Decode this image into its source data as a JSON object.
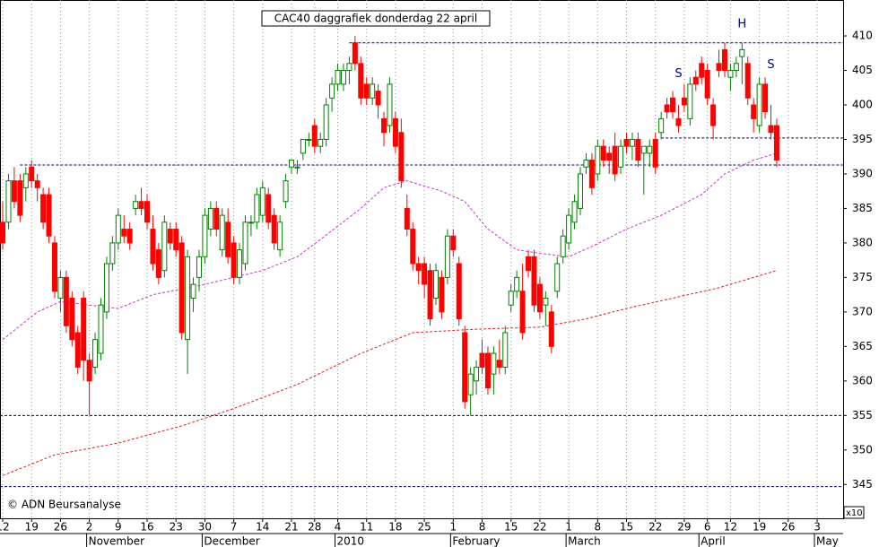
{
  "chart_data": {
    "type": "candlestick",
    "title": "CAC40 daggrafiek donderdag 22 april",
    "footer": "© ADN Beursanalyse",
    "corner_label": "x10",
    "up_color": "#008000",
    "down_color": "#ff0000",
    "grid": true,
    "xlim": [
      -0.47,
      145.5
    ],
    "ylim": [
      340.1,
      415.2
    ],
    "yticks": [
      345,
      350,
      355,
      360,
      365,
      370,
      375,
      380,
      385,
      390,
      395,
      400,
      405,
      410
    ],
    "xticks": [
      {
        "value": 0,
        "label": "12"
      },
      {
        "value": 5,
        "label": "19"
      },
      {
        "value": 10,
        "label": "26"
      },
      {
        "value": 15,
        "label": "2"
      },
      {
        "value": 20,
        "label": "9"
      },
      {
        "value": 25,
        "label": "16"
      },
      {
        "value": 30,
        "label": "23"
      },
      {
        "value": 35,
        "label": "30"
      },
      {
        "value": 40,
        "label": "7"
      },
      {
        "value": 45,
        "label": "14"
      },
      {
        "value": 50,
        "label": "21"
      },
      {
        "value": 54,
        "label": "28"
      },
      {
        "value": 58,
        "label": "4"
      },
      {
        "value": 63,
        "label": "11"
      },
      {
        "value": 68,
        "label": "18"
      },
      {
        "value": 73,
        "label": "25"
      },
      {
        "value": 78,
        "label": "1"
      },
      {
        "value": 83,
        "label": "8"
      },
      {
        "value": 88,
        "label": "15"
      },
      {
        "value": 93,
        "label": "22"
      },
      {
        "value": 98,
        "label": "1"
      },
      {
        "value": 103,
        "label": "8"
      },
      {
        "value": 108,
        "label": "15"
      },
      {
        "value": 113,
        "label": "22"
      },
      {
        "value": 118,
        "label": "29"
      },
      {
        "value": 122,
        "label": "6"
      },
      {
        "value": 126,
        "label": "12"
      },
      {
        "value": 131,
        "label": "19"
      },
      {
        "value": 136,
        "label": "26"
      },
      {
        "value": 141,
        "label": "3"
      }
    ],
    "month_ticks": [
      {
        "value": 15,
        "label": "November"
      },
      {
        "value": 35,
        "label": "December"
      },
      {
        "value": 58,
        "label": "2010"
      },
      {
        "value": 78,
        "label": "February"
      },
      {
        "value": 98,
        "label": "March"
      },
      {
        "value": 121,
        "label": "April"
      },
      {
        "value": 141,
        "label": "May"
      }
    ],
    "ohlc": [
      [
        383,
        386,
        379,
        380
      ],
      [
        383,
        390,
        382,
        389
      ],
      [
        389,
        391,
        385,
        386
      ],
      [
        389,
        390,
        383,
        384
      ],
      [
        388,
        391,
        386,
        390
      ],
      [
        391,
        392,
        388,
        389
      ],
      [
        389,
        390,
        386,
        388
      ],
      [
        387,
        388,
        382,
        383
      ],
      [
        387,
        388,
        380,
        381
      ],
      [
        380,
        381,
        372,
        373
      ],
      [
        372,
        376,
        370,
        375
      ],
      [
        375,
        376,
        367,
        368
      ],
      [
        372,
        373,
        365,
        366
      ],
      [
        367,
        368,
        361,
        362
      ],
      [
        372,
        373,
        360,
        363
      ],
      [
        363,
        364,
        355,
        360
      ],
      [
        362,
        367,
        361,
        366
      ],
      [
        364,
        372,
        363,
        371
      ],
      [
        370,
        378,
        369,
        377
      ],
      [
        377,
        381,
        376,
        380
      ],
      [
        380,
        385,
        379,
        384
      ],
      [
        382,
        384,
        380,
        381
      ],
      [
        382,
        383,
        379,
        380
      ],
      [
        385,
        387,
        384,
        386
      ],
      [
        386,
        388,
        384,
        385
      ],
      [
        386,
        387,
        382,
        383
      ],
      [
        382,
        384,
        376,
        377
      ],
      [
        379,
        380,
        374,
        375
      ],
      [
        376,
        384,
        375,
        383
      ],
      [
        382,
        383,
        379,
        380
      ],
      [
        382,
        383,
        378,
        379
      ],
      [
        380,
        381,
        366,
        367
      ],
      [
        366,
        379,
        361,
        378
      ],
      [
        372,
        375,
        370,
        374
      ],
      [
        375,
        379,
        373,
        378
      ],
      [
        378,
        385,
        377,
        384
      ],
      [
        382,
        386,
        381,
        385
      ],
      [
        385,
        386,
        381,
        382
      ],
      [
        379,
        385,
        378,
        384
      ],
      [
        383,
        385,
        377,
        378
      ],
      [
        380,
        381,
        374,
        375
      ],
      [
        375,
        380,
        374,
        379
      ],
      [
        377,
        384,
        376,
        383
      ],
      [
        383,
        384,
        381,
        383
      ],
      [
        383,
        388,
        382,
        387
      ],
      [
        384,
        389,
        383,
        388
      ],
      [
        387,
        388,
        382,
        383
      ],
      [
        384,
        385,
        379,
        380
      ],
      [
        379,
        384,
        378,
        383
      ],
      [
        386,
        390,
        385,
        389
      ],
      [
        391,
        392,
        390,
        392
      ],
      [
        391,
        392,
        390,
        391
      ],
      [
        393,
        395,
        392,
        395
      ],
      [
        395,
        396,
        394,
        395
      ],
      [
        397,
        398,
        393,
        394
      ],
      [
        394,
        396,
        393,
        395
      ],
      [
        395,
        401,
        394,
        400
      ],
      [
        401,
        404,
        399,
        403
      ],
      [
        403,
        406,
        402,
        405
      ],
      [
        403,
        406,
        402,
        405
      ],
      [
        405,
        407,
        403,
        406
      ],
      [
        409,
        410,
        405,
        406
      ],
      [
        406,
        407,
        400,
        401
      ],
      [
        403,
        404,
        400,
        401
      ],
      [
        401,
        404,
        400,
        403
      ],
      [
        402,
        403,
        398,
        400
      ],
      [
        398,
        399,
        394,
        396
      ],
      [
        397,
        404,
        396,
        403
      ],
      [
        398,
        399,
        393,
        394
      ],
      [
        396,
        398,
        388,
        389
      ],
      [
        385,
        387,
        381,
        382
      ],
      [
        382,
        383,
        376,
        377
      ],
      [
        377,
        378,
        374,
        376
      ],
      [
        377,
        378,
        372,
        374
      ],
      [
        376,
        377,
        368,
        369
      ],
      [
        372,
        377,
        371,
        376
      ],
      [
        375,
        376,
        369,
        370
      ],
      [
        375,
        382,
        374,
        381
      ],
      [
        381,
        382,
        378,
        379
      ],
      [
        377,
        378,
        368,
        369
      ],
      [
        367,
        368,
        356,
        357
      ],
      [
        358,
        362,
        355,
        361
      ],
      [
        360,
        363,
        358,
        362
      ],
      [
        364,
        366,
        361,
        362
      ],
      [
        364,
        365,
        358,
        359
      ],
      [
        361,
        365,
        358,
        364
      ],
      [
        363,
        366,
        361,
        362
      ],
      [
        362,
        368,
        361,
        367
      ],
      [
        371,
        374,
        370,
        373
      ],
      [
        373,
        376,
        372,
        375
      ],
      [
        373,
        377,
        366,
        367
      ],
      [
        378,
        379,
        375,
        376
      ],
      [
        378,
        379,
        370,
        371
      ],
      [
        374,
        375,
        369,
        370
      ],
      [
        371,
        373,
        368,
        372
      ],
      [
        370,
        371,
        364,
        365
      ],
      [
        373,
        378,
        372,
        377
      ],
      [
        378,
        382,
        377,
        381
      ],
      [
        380,
        385,
        379,
        384
      ],
      [
        383,
        387,
        382,
        386
      ],
      [
        385,
        391,
        384,
        390
      ],
      [
        391,
        393,
        390,
        392
      ],
      [
        392,
        393,
        387,
        388
      ],
      [
        390,
        395,
        389,
        394
      ],
      [
        394,
        395,
        391,
        392
      ],
      [
        393,
        394,
        390,
        392
      ],
      [
        394,
        396,
        389,
        390
      ],
      [
        391,
        395,
        390,
        394
      ],
      [
        395,
        396,
        393,
        394
      ],
      [
        394,
        396,
        392,
        395
      ],
      [
        395,
        396,
        391,
        392
      ],
      [
        393,
        394,
        387,
        394
      ],
      [
        393,
        395,
        391,
        394
      ],
      [
        395,
        396,
        390,
        391
      ],
      [
        396,
        399,
        395,
        398
      ],
      [
        400,
        401,
        398,
        399
      ],
      [
        401,
        402,
        398,
        399
      ],
      [
        398,
        400,
        396,
        397
      ],
      [
        401,
        403,
        399,
        400
      ],
      [
        398,
        404,
        397,
        403
      ],
      [
        404,
        405,
        402,
        403
      ],
      [
        406,
        407,
        403,
        404
      ],
      [
        405,
        406,
        400,
        401
      ],
      [
        400,
        401,
        395,
        397
      ],
      [
        406,
        408,
        404,
        405
      ],
      [
        408,
        409,
        404,
        405
      ],
      [
        404,
        406,
        402,
        405
      ],
      [
        405,
        407,
        404,
        406
      ],
      [
        407,
        409,
        403,
        408
      ],
      [
        406,
        407,
        400,
        401
      ],
      [
        400,
        401,
        396,
        398
      ],
      [
        397,
        404,
        396,
        403
      ],
      [
        403,
        404,
        398,
        399
      ],
      [
        397,
        400,
        395,
        396
      ],
      [
        397,
        398,
        391,
        392
      ]
    ],
    "moving_averages": [
      {
        "color": "#cc33cc",
        "x": [
          0,
          6,
          10,
          15,
          20,
          26,
          35,
          45,
          51,
          55,
          62,
          66,
          70,
          76,
          80,
          84,
          89,
          93,
          98,
          102,
          108,
          114,
          121,
          125,
          130,
          134
        ],
        "values": [
          366,
          370,
          371.5,
          371,
          370.5,
          372.5,
          374,
          376,
          378,
          380.5,
          385,
          388,
          389,
          387.5,
          386,
          382,
          379,
          378.5,
          378,
          379.5,
          382,
          384,
          387,
          390,
          392,
          393
        ]
      },
      {
        "color": "#dd2222",
        "x": [
          0,
          9,
          20,
          31,
          40,
          51,
          62,
          71,
          82,
          93,
          101,
          108,
          116,
          124,
          134
        ],
        "values": [
          346.3,
          349.3,
          351,
          353.5,
          356,
          359.5,
          364,
          367,
          367.5,
          367.8,
          369,
          370.5,
          372,
          373.5,
          376
        ]
      }
    ],
    "hlines": [
      {
        "value": 409,
        "start": 60,
        "color": "#000080"
      },
      {
        "value": 395.2,
        "start": 114,
        "color": "#000080"
      },
      {
        "value": 391.3,
        "start": 3,
        "color": "#000080"
      },
      {
        "value": 355,
        "start": -0.47,
        "color": "#000080"
      },
      {
        "value": 344.7,
        "start": -0.47,
        "color": "#000080"
      }
    ],
    "annotations": [
      {
        "text": "S",
        "x": 117,
        "y": 404.5
      },
      {
        "text": "H",
        "x": 128,
        "y": 411.7
      },
      {
        "text": "S",
        "x": 133,
        "y": 405.8
      }
    ]
  }
}
